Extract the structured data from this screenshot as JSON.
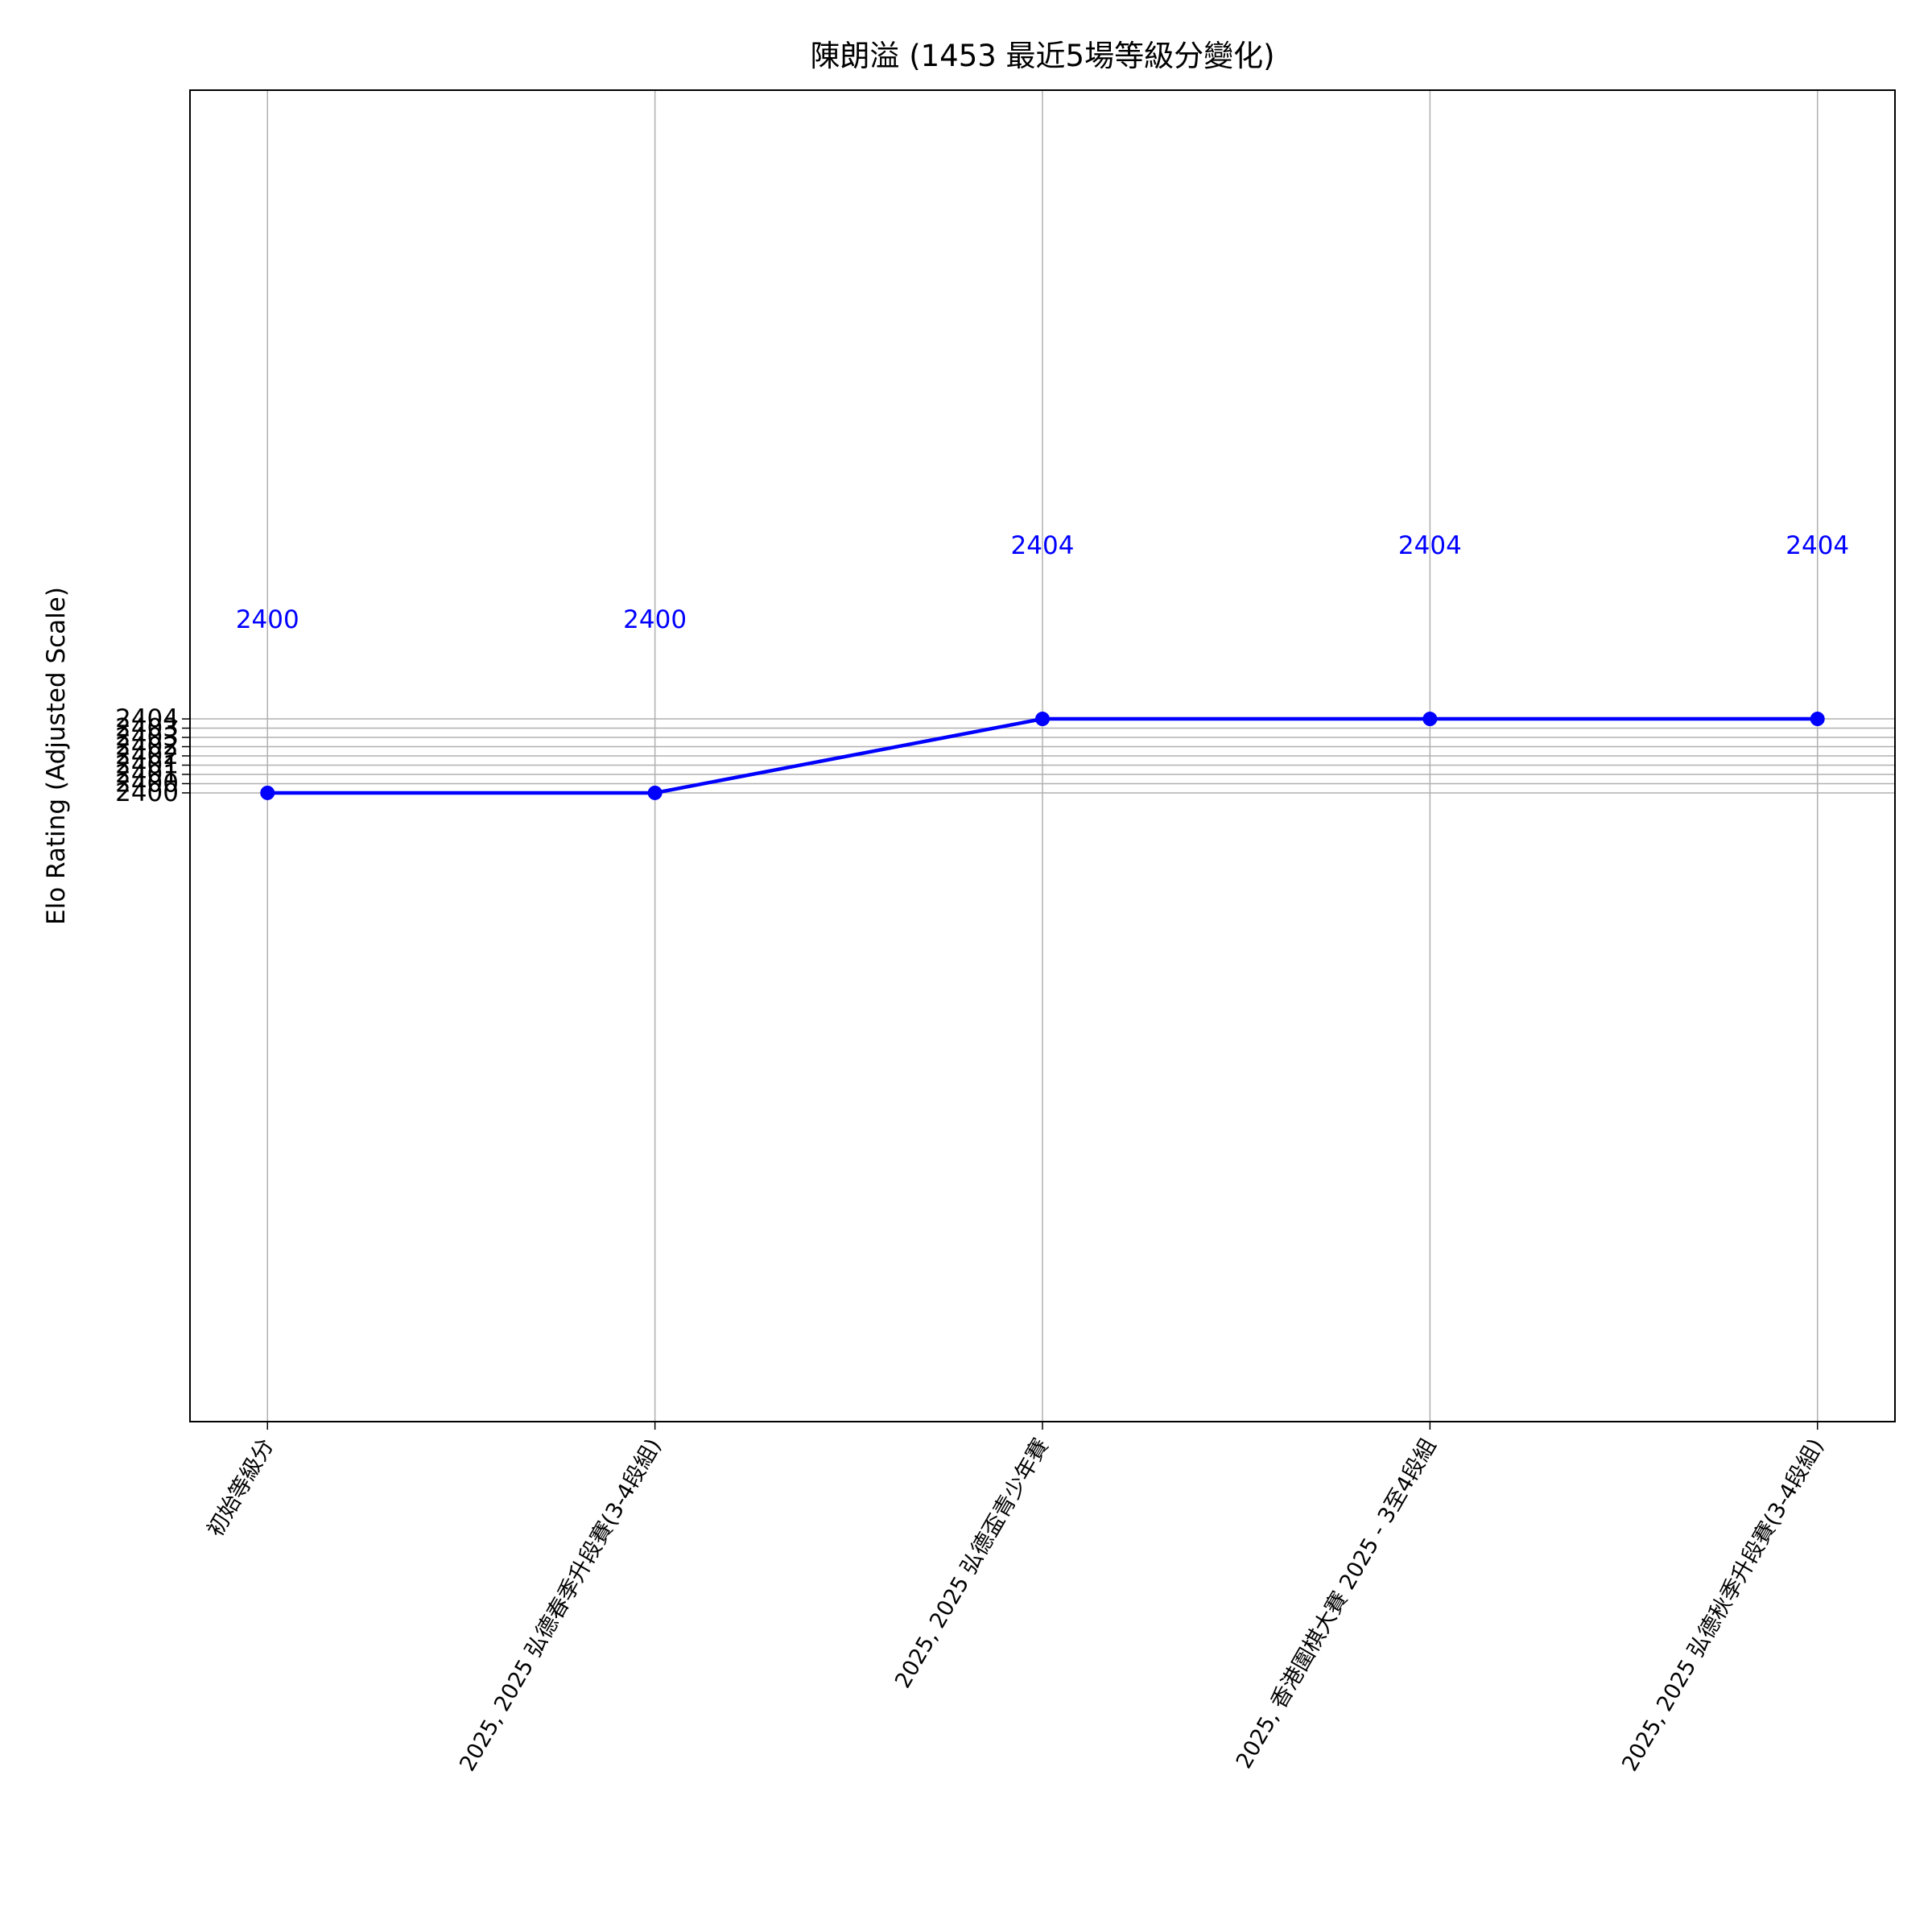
{
  "chart_data": {
    "type": "line",
    "title": "陳朗溢 (1453 最近5場等級分變化)",
    "y_label": "Elo Rating (Adjusted Scale)",
    "categories": [
      "初始等級分",
      "2025, 2025 弘德春季升段賽(3-4段組)",
      "2025, 2025 弘德盃青少年賽",
      "2025, 香港圍棋大賽 2025 - 3至4段組",
      "2025, 2025 弘德秋季升段賽(3-4段組)"
    ],
    "values": [
      2400,
      2400,
      2404,
      2404,
      2404
    ],
    "color": "#0000ff",
    "ylim": [
      2366,
      2438
    ],
    "yticks": [
      2400,
      {
        "value": 2400.5,
        "label": "2400"
      },
      2401,
      {
        "value": 2401.5,
        "label": "2401"
      },
      2402,
      {
        "value": 2402.5,
        "label": "2402"
      },
      2403,
      {
        "value": 2403.5,
        "label": "2403"
      },
      2404
    ],
    "grid": true
  }
}
